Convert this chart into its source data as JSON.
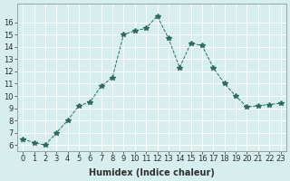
{
  "x": [
    0,
    1,
    2,
    3,
    4,
    5,
    6,
    7,
    8,
    9,
    10,
    11,
    12,
    13,
    14,
    15,
    16,
    17,
    18,
    19,
    20,
    21,
    22,
    23
  ],
  "y": [
    6.5,
    6.2,
    6.0,
    7.0,
    8.0,
    9.2,
    9.5,
    10.8,
    11.5,
    15.0,
    15.3,
    15.5,
    16.5,
    14.7,
    12.3,
    14.3,
    14.1,
    12.3,
    11.0,
    10.0,
    9.1,
    9.2,
    9.3,
    9.4
  ],
  "line_color": "#2e6b5e",
  "marker": "*",
  "marker_size": 4,
  "bg_color": "#d6eeee",
  "grid_color": "#ffffff",
  "xlabel": "Humidex (Indice chaleur)",
  "ylim": [
    5.5,
    17.5
  ],
  "xlim": [
    -0.5,
    23.5
  ],
  "yticks": [
    6,
    7,
    8,
    9,
    10,
    11,
    12,
    13,
    14,
    15,
    16
  ],
  "xticks": [
    0,
    1,
    2,
    3,
    4,
    5,
    6,
    7,
    8,
    9,
    10,
    11,
    12,
    13,
    14,
    15,
    16,
    17,
    18,
    19,
    20,
    21,
    22,
    23
  ],
  "title_fontsize": 7,
  "label_fontsize": 7,
  "tick_fontsize": 6,
  "line_width": 0.7
}
